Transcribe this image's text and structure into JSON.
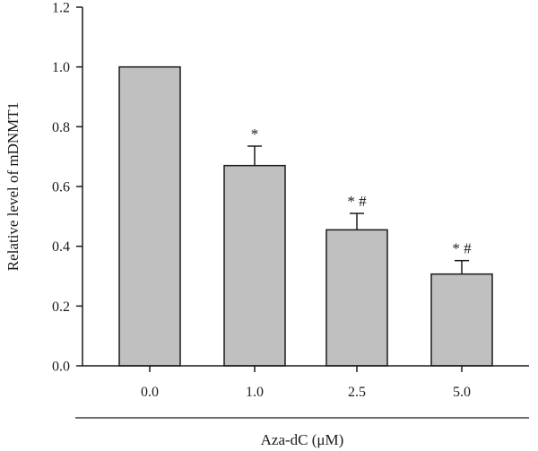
{
  "chart_data": {
    "type": "bar",
    "xlabel": "Aza-dC (μM)",
    "ylabel": "Relative level of mDNMT1",
    "categories": [
      "0.0",
      "1.0",
      "2.5",
      "5.0"
    ],
    "values": [
      1.0,
      0.67,
      0.455,
      0.307
    ],
    "errors": [
      0.0,
      0.065,
      0.055,
      0.045
    ],
    "significance": [
      "",
      "*",
      "*#",
      "*#"
    ],
    "ylim": [
      0,
      1.2
    ],
    "yticks": [
      "0.0",
      "0.2",
      "0.4",
      "0.6",
      "0.8",
      "1.0",
      "1.2"
    ],
    "grid": false,
    "bar_color": "#c0c0c0"
  }
}
